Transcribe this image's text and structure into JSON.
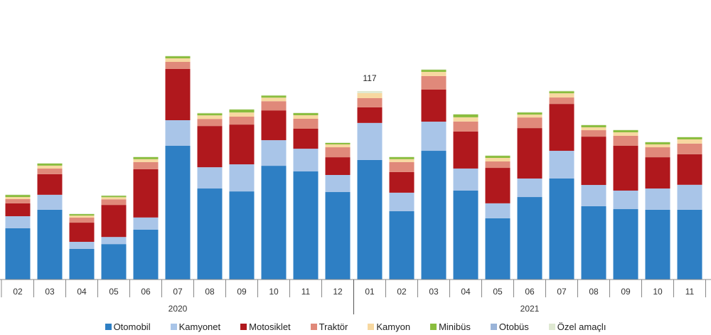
{
  "chart_data": {
    "type": "bar",
    "stacked": true,
    "title": "",
    "xlabel": "",
    "ylabel": "",
    "ylim": [
      0,
      135
    ],
    "grid": false,
    "legend_position": "bottom",
    "categories": [
      "02",
      "03",
      "04",
      "05",
      "06",
      "07",
      "08",
      "09",
      "10",
      "11",
      "12",
      "01",
      "02",
      "03",
      "04",
      "05",
      "06",
      "07",
      "08",
      "09",
      "10",
      "11"
    ],
    "year_groups": [
      {
        "label": "2020",
        "count": 11
      },
      {
        "label": "2021",
        "count": 11
      }
    ],
    "annotations": [
      {
        "category_index": 11,
        "text": "117"
      }
    ],
    "series": [
      {
        "name": "Otomobil",
        "color": "#2e7fc4",
        "values": [
          31.8,
          43.3,
          19,
          22,
          31,
          83,
          56.5,
          54.7,
          70.6,
          67.1,
          54.3,
          74.2,
          42.4,
          79.9,
          55.2,
          38,
          51.2,
          62.7,
          45.5,
          43.7,
          43.3,
          43.3
        ]
      },
      {
        "name": "Kamyonet",
        "color": "#a9c5e8",
        "values": [
          7.5,
          9.3,
          4.4,
          4.4,
          7.5,
          15.9,
          13.2,
          16.8,
          15.9,
          14.1,
          10.6,
          23,
          11.5,
          18.1,
          13.7,
          9.3,
          11.5,
          17.2,
          13.2,
          11.5,
          13.2,
          15.5
        ]
      },
      {
        "name": "Motosiklet",
        "color": "#b0181d",
        "values": [
          8,
          12.8,
          11.9,
          19.9,
          30,
          31.8,
          25.6,
          24.7,
          18.5,
          12.4,
          11,
          9.7,
          12.8,
          19.9,
          23,
          22,
          31.3,
          29.1,
          30,
          27.8,
          19.4,
          19
        ]
      },
      {
        "name": "Traktör",
        "color": "#e0897a",
        "values": [
          2.6,
          3.5,
          3.1,
          3.5,
          4.4,
          4.4,
          4.4,
          4.9,
          5.7,
          6.2,
          6.2,
          5.7,
          6.2,
          8.4,
          6.2,
          4,
          6.6,
          4,
          4,
          6.2,
          6.2,
          6.6
        ]
      },
      {
        "name": "Kamyon",
        "color": "#f7d8a0",
        "values": [
          1.3,
          1.8,
          1.3,
          1.3,
          1.8,
          2.2,
          2.2,
          2.6,
          2.2,
          2.2,
          1.8,
          3.1,
          1.8,
          2.6,
          2.6,
          2.2,
          1.8,
          2.6,
          1.8,
          2.2,
          1.8,
          2.6
        ]
      },
      {
        "name": "Minibüs",
        "color": "#8abd3e",
        "values": [
          1.3,
          1.3,
          0.9,
          0.9,
          1.3,
          1.3,
          1.3,
          1.8,
          1.3,
          1.3,
          0.9,
          0,
          1.3,
          1.3,
          1.8,
          1.3,
          1.3,
          1.3,
          1.3,
          1.3,
          1.3,
          1.3
        ]
      },
      {
        "name": "Otobüs",
        "color": "#9ab4d8",
        "values": [
          0,
          0,
          0,
          0,
          0,
          0,
          0,
          0,
          0,
          0,
          0,
          0,
          0,
          0,
          0,
          0,
          0,
          0,
          0,
          0,
          0,
          0
        ]
      },
      {
        "name": "Özel amaçlı",
        "color": "#dfe9d2",
        "values": [
          0.3,
          0.3,
          0.3,
          0.3,
          0.3,
          0.3,
          0.3,
          0.3,
          0.3,
          0.3,
          0.3,
          1.3,
          0.3,
          0.3,
          0.3,
          0.3,
          0.3,
          0.3,
          0.3,
          0.3,
          0.3,
          0.3
        ]
      }
    ]
  }
}
